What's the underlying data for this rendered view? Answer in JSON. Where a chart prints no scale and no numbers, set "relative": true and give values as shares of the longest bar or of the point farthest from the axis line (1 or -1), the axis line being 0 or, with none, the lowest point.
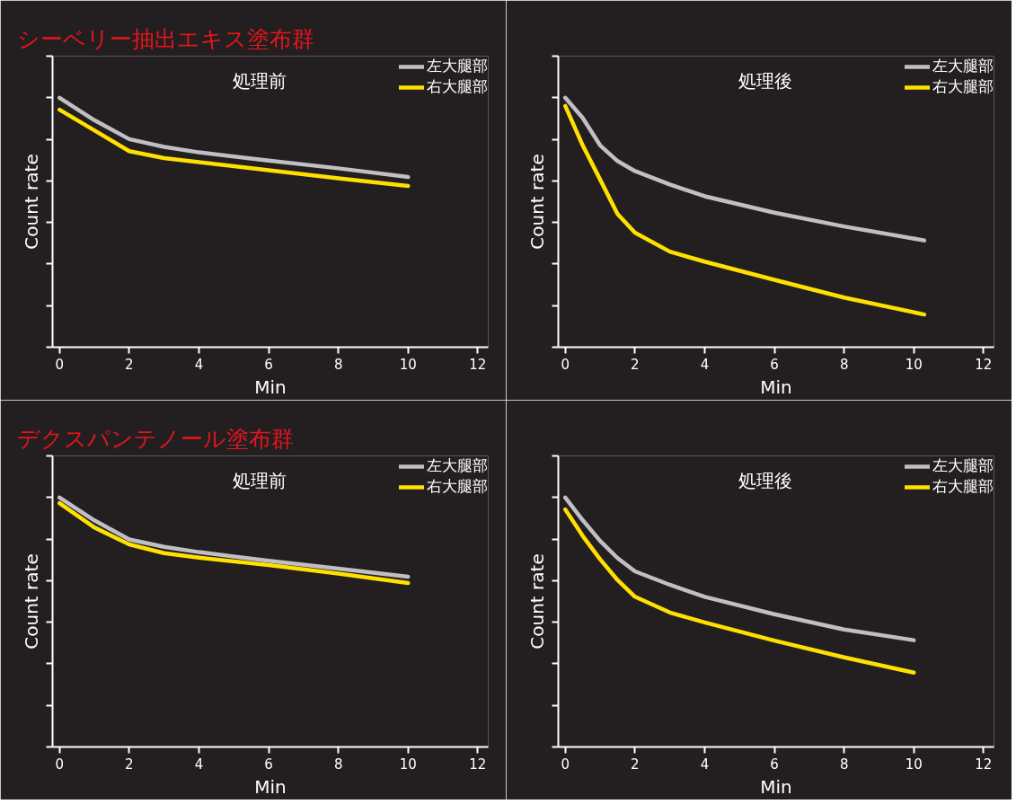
{
  "chart_data": [
    {
      "type": "line",
      "title": "シーベリー抽出エキス塗布群",
      "subtitle": "処理前",
      "xlabel": "Min",
      "ylabel": "Count rate",
      "relative": true,
      "xlim": [
        -0.2,
        12.3
      ],
      "xticks": [
        0,
        2,
        4,
        6,
        8,
        10,
        12
      ],
      "legend": "top right",
      "grid": false,
      "marker": "none",
      "line_style": "solid",
      "series": [
        {
          "name": "左大腿部",
          "color": "#c0c0c4",
          "x": [
            0,
            1,
            2,
            3,
            4,
            6,
            8,
            10
          ],
          "values": [
            1,
            0.91,
            0.834,
            0.803,
            0.781,
            0.748,
            0.717,
            0.682
          ]
        },
        {
          "name": "右大腿部",
          "color": "#ffe000",
          "x": [
            0,
            1,
            2,
            3,
            4,
            6,
            8,
            10
          ],
          "values": [
            0.952,
            0.869,
            0.786,
            0.758,
            0.742,
            0.709,
            0.677,
            0.646
          ]
        }
      ]
    },
    {
      "type": "line",
      "subtitle": "処理後",
      "xlabel": "Min",
      "ylabel": "Count rate",
      "relative": true,
      "xlim": [
        -0.2,
        12.3
      ],
      "xticks": [
        0,
        2,
        4,
        6,
        8,
        10,
        12
      ],
      "legend": "top right",
      "grid": false,
      "marker": "none",
      "line_style": "solid",
      "series": [
        {
          "name": "左大腿部",
          "color": "#c0c0c4",
          "x": [
            0,
            0.5,
            1,
            1.5,
            2,
            3,
            4,
            6,
            8,
            10.3
          ],
          "values": [
            1,
            0.919,
            0.809,
            0.746,
            0.706,
            0.652,
            0.605,
            0.539,
            0.484,
            0.428
          ]
        },
        {
          "name": "右大腿部",
          "color": "#ffe000",
          "x": [
            0,
            0.5,
            1,
            1.5,
            2,
            3,
            4,
            6,
            8,
            10.3
          ],
          "values": [
            0.967,
            0.809,
            0.672,
            0.534,
            0.459,
            0.383,
            0.343,
            0.27,
            0.199,
            0.131
          ]
        }
      ]
    },
    {
      "type": "line",
      "title": "デクスパンテノール塗布群",
      "subtitle": "処理前",
      "xlabel": "Min",
      "ylabel": "Count rate",
      "relative": true,
      "xlim": [
        -0.2,
        12.3
      ],
      "xticks": [
        0,
        2,
        4,
        6,
        8,
        10,
        12
      ],
      "legend": "top right",
      "grid": false,
      "marker": "none",
      "line_style": "solid",
      "series": [
        {
          "name": "左大腿部",
          "color": "#c0c0c4",
          "x": [
            0,
            1,
            2,
            3,
            4,
            6,
            8,
            10
          ],
          "values": [
            1,
            0.908,
            0.832,
            0.802,
            0.781,
            0.746,
            0.715,
            0.682
          ]
        },
        {
          "name": "右大腿部",
          "color": "#ffe000",
          "x": [
            0,
            1,
            2,
            3,
            4,
            6,
            8,
            10
          ],
          "values": [
            0.977,
            0.88,
            0.812,
            0.777,
            0.759,
            0.729,
            0.695,
            0.657
          ]
        }
      ]
    },
    {
      "type": "line",
      "subtitle": "処理後",
      "xlabel": "Min",
      "ylabel": "Count rate",
      "relative": true,
      "xlim": [
        -0.2,
        12.3
      ],
      "xticks": [
        0,
        2,
        4,
        6,
        8,
        10,
        12
      ],
      "legend": "top right",
      "grid": false,
      "marker": "none",
      "line_style": "solid",
      "series": [
        {
          "name": "左大腿部",
          "color": "#c0c0c4",
          "x": [
            0,
            0.5,
            1,
            1.5,
            2,
            3,
            4,
            6,
            8,
            10
          ],
          "values": [
            1,
            0.909,
            0.826,
            0.757,
            0.704,
            0.65,
            0.602,
            0.532,
            0.471,
            0.428
          ]
        },
        {
          "name": "右大腿部",
          "color": "#ffe000",
          "x": [
            0,
            0.5,
            1,
            1.5,
            2,
            3,
            4,
            6,
            8,
            10
          ],
          "values": [
            0.952,
            0.846,
            0.752,
            0.669,
            0.602,
            0.539,
            0.499,
            0.426,
            0.359,
            0.298
          ]
        }
      ]
    }
  ]
}
